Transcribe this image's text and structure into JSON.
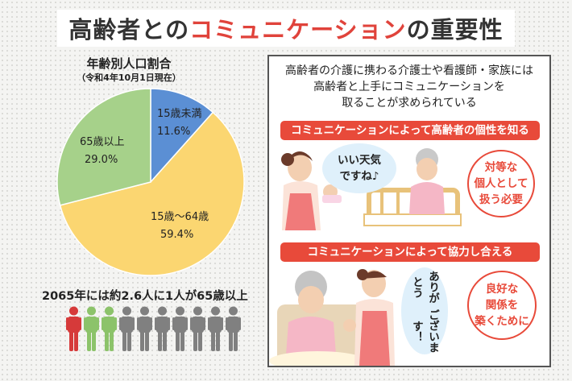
{
  "title": {
    "part1": "高齢者との",
    "part2": "コミュニケーション",
    "part3": "の重要性"
  },
  "chart_data": {
    "type": "pie",
    "title": "年齢別人口割合",
    "subtitle": "（令和4年10月1日現在）",
    "slices": [
      {
        "label": "15歳未満",
        "value": 11.6,
        "display": "11.6%",
        "color": "#5b8fd4"
      },
      {
        "label": "15歳〜64歳",
        "value": 59.4,
        "display": "59.4%",
        "color": "#fbd671"
      },
      {
        "label": "65歳以上",
        "value": 29.0,
        "display": "29.0%",
        "color": "#a6d18a"
      }
    ]
  },
  "bottom": {
    "text": "2065年には約2.6人に1人が65歳以上",
    "people_colors": [
      "#d63a3a",
      "#8cc36a",
      "#808080"
    ]
  },
  "panel": {
    "intro": [
      "高齢者の介護に携わる介護士や看護師・家族には",
      "高齢者と上手にコミュニケーションを",
      "取ることが求められている"
    ],
    "section1": {
      "banner": "コミュニケーションによって高齢者の個性を知る",
      "speech": [
        "いい天気",
        "ですね♪"
      ],
      "circle": [
        "対等な",
        "個人として",
        "扱う必要"
      ]
    },
    "section2": {
      "banner": "コミュニケーションによって協力し合える",
      "speech": [
        "ありがとう",
        "ございます！"
      ],
      "circle": [
        "良好な",
        "関係を",
        "築くために"
      ]
    }
  }
}
